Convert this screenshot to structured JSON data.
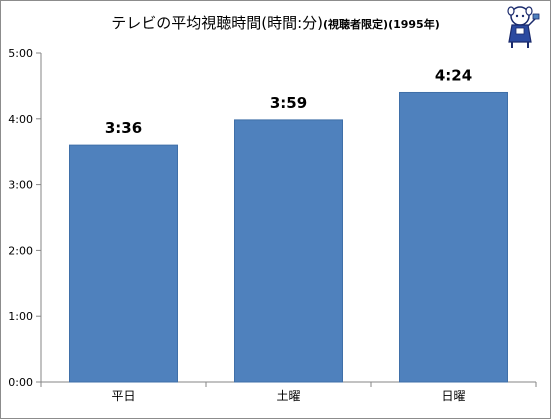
{
  "chart_data": {
    "type": "bar",
    "title": "テレビの平均視聴時間(時間:分)",
    "subtitle": "(視聴者限定)(1995年)",
    "categories": [
      "平日",
      "土曜",
      "日曜"
    ],
    "values": [
      216,
      239,
      264
    ],
    "data_labels": [
      "3:36",
      "3:59",
      "4:24"
    ],
    "y_tick_labels": [
      "0:00",
      "1:00",
      "2:00",
      "3:00",
      "4:00",
      "5:00"
    ],
    "ylim": [
      0,
      300
    ],
    "y_tick_step": 60,
    "xlabel": "",
    "ylabel": "",
    "grid": false,
    "legend": "none",
    "bar_color": "#4f81bd",
    "bar_edge_color": "#3f6fa8",
    "axis_color": "#868686"
  },
  "mascot_icon": "mascot-character-icon"
}
